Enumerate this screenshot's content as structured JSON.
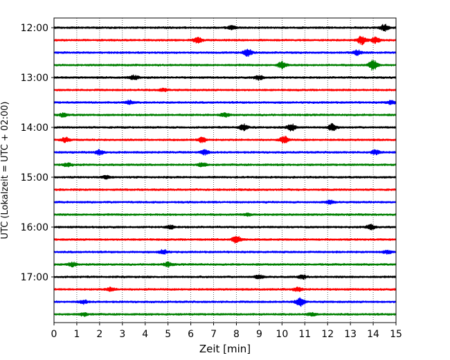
{
  "chart_data": {
    "type": "line",
    "subtype": "helicorder",
    "xlabel": "Zeit  [min]",
    "ylabel": "UTC (Lokalzeit = UTC + 02:00)",
    "xlim": [
      0,
      15
    ],
    "x_ticks": [
      "0",
      "1",
      "2",
      "3",
      "4",
      "5",
      "6",
      "7",
      "8",
      "9",
      "10",
      "11",
      "12",
      "13",
      "14",
      "15"
    ],
    "y_tick_labels": [
      "12:00",
      "13:00",
      "14:00",
      "15:00",
      "16:00",
      "17:00"
    ],
    "row_interval_min": 15,
    "vertical_grid": "dotted",
    "trace_colors": [
      "#000000",
      "#ff0000",
      "#0000ff",
      "#008000"
    ],
    "rows": [
      {
        "start": "12:00",
        "color": "#000000",
        "events": [
          {
            "t": 14.5,
            "amp": 0.55
          },
          {
            "t": 7.8,
            "amp": 0.3
          }
        ]
      },
      {
        "start": "12:15",
        "color": "#ff0000",
        "events": [
          {
            "t": 6.3,
            "amp": 0.45
          },
          {
            "t": 13.5,
            "amp": 0.7
          },
          {
            "t": 14.1,
            "amp": 0.5
          }
        ]
      },
      {
        "start": "12:30",
        "color": "#0000ff",
        "events": [
          {
            "t": 8.5,
            "amp": 0.65
          },
          {
            "t": 13.3,
            "amp": 0.4
          }
        ]
      },
      {
        "start": "12:45",
        "color": "#008000",
        "events": [
          {
            "t": 10.0,
            "amp": 0.6
          },
          {
            "t": 14.0,
            "amp": 0.9
          }
        ]
      },
      {
        "start": "13:00",
        "color": "#000000",
        "events": [
          {
            "t": 3.5,
            "amp": 0.35
          },
          {
            "t": 9.0,
            "amp": 0.4
          }
        ]
      },
      {
        "start": "13:15",
        "color": "#ff0000",
        "events": [
          {
            "t": 4.8,
            "amp": 0.25
          }
        ]
      },
      {
        "start": "13:30",
        "color": "#0000ff",
        "events": [
          {
            "t": 3.3,
            "amp": 0.3
          },
          {
            "t": 14.8,
            "amp": 0.3
          }
        ]
      },
      {
        "start": "13:45",
        "color": "#008000",
        "events": [
          {
            "t": 0.4,
            "amp": 0.3
          },
          {
            "t": 7.5,
            "amp": 0.3
          }
        ]
      },
      {
        "start": "14:00",
        "color": "#000000",
        "events": [
          {
            "t": 8.3,
            "amp": 0.5
          },
          {
            "t": 10.4,
            "amp": 0.65
          },
          {
            "t": 12.2,
            "amp": 0.55
          }
        ]
      },
      {
        "start": "14:15",
        "color": "#ff0000",
        "events": [
          {
            "t": 0.5,
            "amp": 0.4
          },
          {
            "t": 6.5,
            "amp": 0.45
          },
          {
            "t": 10.1,
            "amp": 0.6
          }
        ]
      },
      {
        "start": "14:30",
        "color": "#0000ff",
        "events": [
          {
            "t": 2.0,
            "amp": 0.4
          },
          {
            "t": 6.6,
            "amp": 0.4
          },
          {
            "t": 14.1,
            "amp": 0.35
          }
        ]
      },
      {
        "start": "14:45",
        "color": "#008000",
        "events": [
          {
            "t": 0.6,
            "amp": 0.3
          },
          {
            "t": 6.5,
            "amp": 0.3
          }
        ]
      },
      {
        "start": "15:00",
        "color": "#000000",
        "events": [
          {
            "t": 2.3,
            "amp": 0.25
          }
        ]
      },
      {
        "start": "15:15",
        "color": "#ff0000",
        "events": []
      },
      {
        "start": "15:30",
        "color": "#0000ff",
        "events": [
          {
            "t": 12.1,
            "amp": 0.3
          }
        ]
      },
      {
        "start": "15:45",
        "color": "#008000",
        "events": [
          {
            "t": 8.5,
            "amp": 0.2
          }
        ]
      },
      {
        "start": "16:00",
        "color": "#000000",
        "events": [
          {
            "t": 5.1,
            "amp": 0.3
          },
          {
            "t": 13.9,
            "amp": 0.45
          }
        ]
      },
      {
        "start": "16:15",
        "color": "#ff0000",
        "events": [
          {
            "t": 8.0,
            "amp": 0.65
          }
        ]
      },
      {
        "start": "16:30",
        "color": "#0000ff",
        "events": [
          {
            "t": 4.8,
            "amp": 0.35
          },
          {
            "t": 14.6,
            "amp": 0.3
          }
        ]
      },
      {
        "start": "16:45",
        "color": "#008000",
        "events": [
          {
            "t": 0.8,
            "amp": 0.35
          },
          {
            "t": 5.0,
            "amp": 0.35
          }
        ]
      },
      {
        "start": "17:00",
        "color": "#000000",
        "events": [
          {
            "t": 9.0,
            "amp": 0.3
          },
          {
            "t": 10.9,
            "amp": 0.3
          }
        ]
      },
      {
        "start": "17:15",
        "color": "#ff0000",
        "events": [
          {
            "t": 2.5,
            "amp": 0.3
          },
          {
            "t": 10.7,
            "amp": 0.3
          }
        ]
      },
      {
        "start": "17:30",
        "color": "#0000ff",
        "events": [
          {
            "t": 1.3,
            "amp": 0.3
          },
          {
            "t": 10.8,
            "amp": 0.75
          }
        ]
      },
      {
        "start": "17:45",
        "color": "#008000",
        "events": [
          {
            "t": 1.3,
            "amp": 0.25
          },
          {
            "t": 11.3,
            "amp": 0.25
          }
        ]
      }
    ]
  }
}
